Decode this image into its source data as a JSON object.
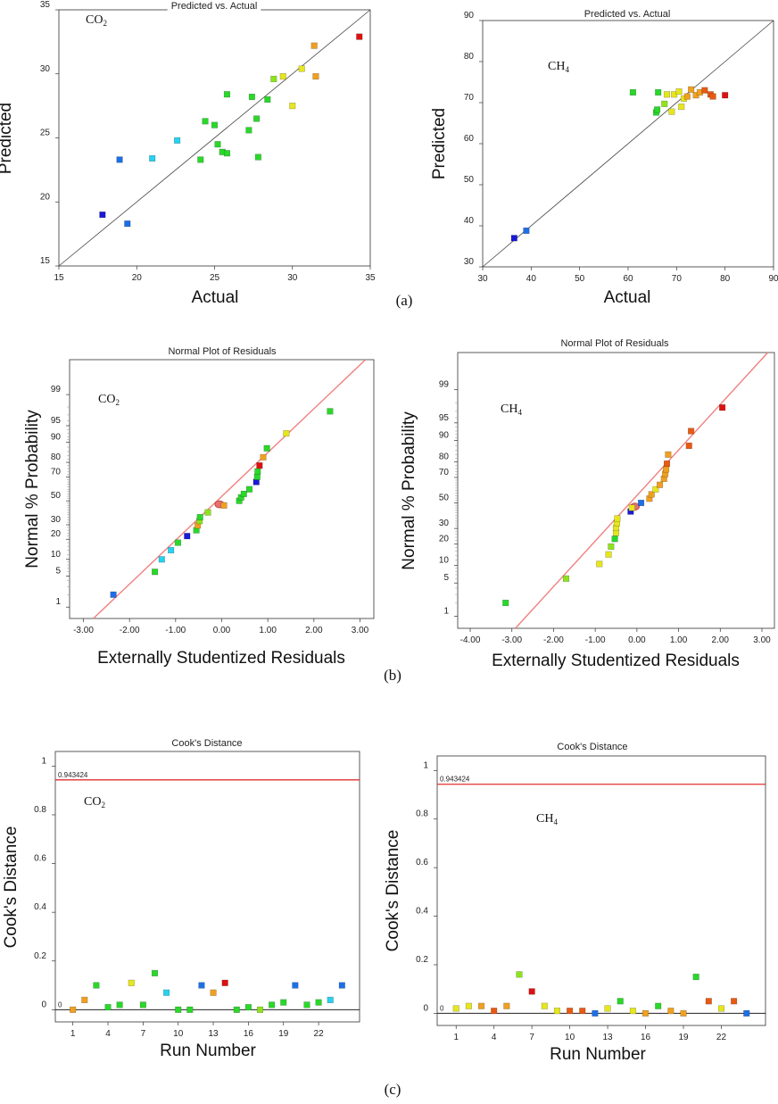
{
  "figure": {
    "panel_labels": [
      "(a)",
      "(b)",
      "(c)"
    ]
  },
  "palette": [
    "#1a1ad6",
    "#1e6fe6",
    "#27d2f0",
    "#2ad82a",
    "#8ee41c",
    "#e6e61e",
    "#f0a020",
    "#e85a14",
    "#de1010"
  ],
  "chart_data": [
    {
      "type": "scatter",
      "id": "pva-co2",
      "title": "Predicted vs. Actual",
      "gas": "CO",
      "gas_sub": "2",
      "xlabel": "Actual",
      "ylabel": "Predicted",
      "xlim": [
        15,
        35
      ],
      "ylim": [
        15,
        35
      ],
      "xticks": [
        15,
        20,
        25,
        30,
        35
      ],
      "yticks": [
        15,
        20,
        25,
        30,
        35
      ],
      "reference_line": [
        [
          15,
          15
        ],
        [
          35,
          35
        ]
      ],
      "points": [
        {
          "x": 17.8,
          "y": 19.0,
          "c": 0
        },
        {
          "x": 18.9,
          "y": 23.3,
          "c": 1
        },
        {
          "x": 19.4,
          "y": 18.3,
          "c": 1
        },
        {
          "x": 21.0,
          "y": 23.4,
          "c": 2
        },
        {
          "x": 22.6,
          "y": 24.8,
          "c": 2
        },
        {
          "x": 24.1,
          "y": 23.3,
          "c": 3
        },
        {
          "x": 24.4,
          "y": 26.3,
          "c": 3
        },
        {
          "x": 25.0,
          "y": 26.0,
          "c": 3
        },
        {
          "x": 25.2,
          "y": 24.5,
          "c": 3
        },
        {
          "x": 25.5,
          "y": 23.9,
          "c": 3
        },
        {
          "x": 25.8,
          "y": 23.8,
          "c": 3
        },
        {
          "x": 25.8,
          "y": 28.4,
          "c": 3
        },
        {
          "x": 27.2,
          "y": 25.6,
          "c": 3
        },
        {
          "x": 27.4,
          "y": 28.2,
          "c": 3
        },
        {
          "x": 27.7,
          "y": 26.5,
          "c": 3
        },
        {
          "x": 27.8,
          "y": 23.5,
          "c": 3
        },
        {
          "x": 28.4,
          "y": 28.0,
          "c": 3
        },
        {
          "x": 28.8,
          "y": 29.6,
          "c": 4
        },
        {
          "x": 29.4,
          "y": 29.8,
          "c": 5
        },
        {
          "x": 30.0,
          "y": 27.5,
          "c": 5
        },
        {
          "x": 30.6,
          "y": 30.4,
          "c": 5
        },
        {
          "x": 31.4,
          "y": 32.2,
          "c": 6
        },
        {
          "x": 31.5,
          "y": 29.8,
          "c": 6
        },
        {
          "x": 34.3,
          "y": 32.9,
          "c": 8
        }
      ]
    },
    {
      "type": "scatter",
      "id": "pva-ch4",
      "title": "Predicted vs. Actual",
      "gas": "CH",
      "gas_sub": "4",
      "xlabel": "Actual",
      "ylabel": "Predicted",
      "xlim": [
        30,
        90
      ],
      "ylim": [
        30,
        90
      ],
      "xticks": [
        30,
        40,
        50,
        60,
        70,
        80,
        90
      ],
      "yticks": [
        30,
        40,
        50,
        60,
        70,
        80,
        90
      ],
      "reference_line": [
        [
          30,
          30
        ],
        [
          90,
          90
        ]
      ],
      "points": [
        {
          "x": 36.5,
          "y": 37.0,
          "c": 0
        },
        {
          "x": 39.0,
          "y": 38.8,
          "c": 1
        },
        {
          "x": 61.0,
          "y": 72.5,
          "c": 3
        },
        {
          "x": 65.8,
          "y": 67.6,
          "c": 3
        },
        {
          "x": 66.0,
          "y": 68.3,
          "c": 3
        },
        {
          "x": 66.2,
          "y": 72.5,
          "c": 3
        },
        {
          "x": 67.5,
          "y": 69.7,
          "c": 4
        },
        {
          "x": 68.0,
          "y": 72.0,
          "c": 5
        },
        {
          "x": 69.0,
          "y": 67.8,
          "c": 5
        },
        {
          "x": 69.5,
          "y": 72.0,
          "c": 5
        },
        {
          "x": 70.5,
          "y": 72.7,
          "c": 5
        },
        {
          "x": 71.0,
          "y": 69.0,
          "c": 5
        },
        {
          "x": 71.5,
          "y": 71.0,
          "c": 5
        },
        {
          "x": 72.2,
          "y": 71.5,
          "c": 6
        },
        {
          "x": 73.0,
          "y": 73.2,
          "c": 6
        },
        {
          "x": 74.0,
          "y": 71.8,
          "c": 6
        },
        {
          "x": 74.8,
          "y": 72.5,
          "c": 6
        },
        {
          "x": 75.8,
          "y": 73.0,
          "c": 7
        },
        {
          "x": 77.0,
          "y": 72.0,
          "c": 7
        },
        {
          "x": 77.5,
          "y": 71.5,
          "c": 7
        },
        {
          "x": 80.0,
          "y": 71.8,
          "c": 8
        }
      ]
    },
    {
      "type": "scatter",
      "id": "npr-co2",
      "title": "Normal Plot of Residuals",
      "gas": "CO",
      "gas_sub": "2",
      "xlabel": "Externally Studentized Residuals",
      "ylabel": "Normal % Probability",
      "xlim": [
        -3.3,
        3.3
      ],
      "xticks": [
        -3,
        -2,
        -1,
        0,
        1,
        2,
        3
      ],
      "xtick_labels": [
        "-3.00",
        "-2.00",
        "-1.00",
        "0.00",
        "1.00",
        "2.00",
        "3.00"
      ],
      "yticks": [
        1,
        5,
        10,
        20,
        30,
        50,
        70,
        80,
        90,
        95,
        99
      ],
      "reference_line": [
        [
          -3.3,
          0.107
        ],
        [
          3.3,
          99.945
        ]
      ],
      "points": [
        {
          "x": -2.35,
          "p": 2.0,
          "c": 1
        },
        {
          "x": -1.45,
          "p": 6.0,
          "c": 3
        },
        {
          "x": -1.3,
          "p": 10.0,
          "c": 2
        },
        {
          "x": -1.1,
          "p": 14.0,
          "c": 2
        },
        {
          "x": -0.95,
          "p": 18.0,
          "c": 3
        },
        {
          "x": -0.75,
          "p": 22.0,
          "c": 0
        },
        {
          "x": -0.55,
          "p": 26.0,
          "c": 3
        },
        {
          "x": -0.52,
          "p": 29.5,
          "c": 6
        },
        {
          "x": -0.48,
          "p": 33.0,
          "c": 4
        },
        {
          "x": -0.47,
          "p": 36.0,
          "c": 3
        },
        {
          "x": -0.3,
          "p": 40.0,
          "c": 4
        },
        {
          "x": 0.05,
          "p": 46.0,
          "c": 6
        },
        {
          "x": 0.38,
          "p": 50.0,
          "c": 3
        },
        {
          "x": 0.42,
          "p": 53.0,
          "c": 3
        },
        {
          "x": 0.48,
          "p": 56.0,
          "c": 3
        },
        {
          "x": 0.6,
          "p": 60.0,
          "c": 3
        },
        {
          "x": 0.75,
          "p": 66.0,
          "c": 0
        },
        {
          "x": 0.77,
          "p": 70.0,
          "c": 3
        },
        {
          "x": 0.78,
          "p": 74.0,
          "c": 3
        },
        {
          "x": 0.82,
          "p": 78.0,
          "c": 8
        },
        {
          "x": 0.9,
          "p": 83.0,
          "c": 6
        },
        {
          "x": 0.98,
          "p": 87.5,
          "c": 3
        },
        {
          "x": 1.4,
          "p": 93.0,
          "c": 5
        },
        {
          "x": 2.35,
          "p": 97.5,
          "c": 3
        }
      ],
      "center_marker": {
        "x": -0.05,
        "p": 47.0
      }
    },
    {
      "type": "scatter",
      "id": "npr-ch4",
      "title": "Normal Plot of Residuals",
      "gas": "CH",
      "gas_sub": "4",
      "xlabel": "Externally Studentized Residuals",
      "ylabel": "Normal % Probability",
      "xlim": [
        -4.3,
        3.3
      ],
      "xticks": [
        -4,
        -3,
        -2,
        -1,
        0,
        1,
        2,
        3
      ],
      "xtick_labels": [
        "-4.00",
        "-3.00",
        "-2.00",
        "-1.00",
        "0.00",
        "1.00",
        "2.00",
        "3.00"
      ],
      "yticks": [
        1,
        5,
        10,
        20,
        30,
        50,
        70,
        80,
        90,
        95,
        99
      ],
      "reference_line": [
        [
          -3.5,
          0.09
        ],
        [
          3.3,
          99.94
        ]
      ],
      "points": [
        {
          "x": -3.15,
          "p": 2.0,
          "c": 3
        },
        {
          "x": -1.7,
          "p": 6.0,
          "c": 4
        },
        {
          "x": -0.9,
          "p": 10.5,
          "c": 5
        },
        {
          "x": -0.68,
          "p": 14.5,
          "c": 5
        },
        {
          "x": -0.62,
          "p": 18.5,
          "c": 4
        },
        {
          "x": -0.53,
          "p": 23.0,
          "c": 3
        },
        {
          "x": -0.5,
          "p": 27.0,
          "c": 5
        },
        {
          "x": -0.5,
          "p": 30.5,
          "c": 5
        },
        {
          "x": -0.48,
          "p": 34.0,
          "c": 5
        },
        {
          "x": -0.47,
          "p": 37.5,
          "c": 5
        },
        {
          "x": -0.15,
          "p": 43.0,
          "c": 0
        },
        {
          "x": -0.12,
          "p": 46.0,
          "c": 5
        },
        {
          "x": 0.1,
          "p": 50.0,
          "c": 1
        },
        {
          "x": 0.3,
          "p": 53.5,
          "c": 6
        },
        {
          "x": 0.35,
          "p": 57.0,
          "c": 6
        },
        {
          "x": 0.45,
          "p": 61.0,
          "c": 5
        },
        {
          "x": 0.55,
          "p": 64.5,
          "c": 6
        },
        {
          "x": 0.65,
          "p": 69.0,
          "c": 6
        },
        {
          "x": 0.68,
          "p": 72.5,
          "c": 6
        },
        {
          "x": 0.7,
          "p": 75.5,
          "c": 6
        },
        {
          "x": 0.72,
          "p": 79.0,
          "c": 7
        },
        {
          "x": 0.75,
          "p": 84.0,
          "c": 6
        },
        {
          "x": 1.25,
          "p": 88.0,
          "c": 7
        },
        {
          "x": 1.3,
          "p": 93.0,
          "c": 7
        },
        {
          "x": 2.05,
          "p": 97.5,
          "c": 8
        }
      ],
      "center_marker": {
        "x": -0.05,
        "p": 47.0
      }
    },
    {
      "type": "scatter",
      "id": "cook-co2",
      "title": "Cook's Distance",
      "gas": "CO",
      "gas_sub": "2",
      "xlabel": "Run Number",
      "ylabel": "Cook's Distance",
      "xlim": [
        -0.5,
        25.5
      ],
      "ylim": [
        -0.05,
        1.06
      ],
      "xticks": [
        1,
        4,
        7,
        10,
        13,
        16,
        19,
        22
      ],
      "yticks": [
        0,
        0.2,
        0.4,
        0.6,
        0.8,
        1
      ],
      "ytick_labels": [
        "0",
        "0.2",
        "0.4",
        "0.6",
        "0.8",
        "1"
      ],
      "threshold": 0.943424,
      "threshold_label": "0.943424",
      "zero_label": "0",
      "points": [
        {
          "x": 1,
          "y": 0.0,
          "c": 6
        },
        {
          "x": 2,
          "y": 0.04,
          "c": 6
        },
        {
          "x": 3,
          "y": 0.1,
          "c": 3
        },
        {
          "x": 4,
          "y": 0.01,
          "c": 3
        },
        {
          "x": 5,
          "y": 0.02,
          "c": 3
        },
        {
          "x": 6,
          "y": 0.11,
          "c": 5
        },
        {
          "x": 7,
          "y": 0.02,
          "c": 3
        },
        {
          "x": 8,
          "y": 0.15,
          "c": 3
        },
        {
          "x": 9,
          "y": 0.07,
          "c": 2
        },
        {
          "x": 10,
          "y": 0.0,
          "c": 3
        },
        {
          "x": 11,
          "y": 0.0,
          "c": 3
        },
        {
          "x": 12,
          "y": 0.1,
          "c": 1
        },
        {
          "x": 13,
          "y": 0.07,
          "c": 6
        },
        {
          "x": 14,
          "y": 0.11,
          "c": 8
        },
        {
          "x": 15,
          "y": 0.0,
          "c": 3
        },
        {
          "x": 16,
          "y": 0.01,
          "c": 3
        },
        {
          "x": 17,
          "y": 0.0,
          "c": 4
        },
        {
          "x": 18,
          "y": 0.02,
          "c": 3
        },
        {
          "x": 19,
          "y": 0.03,
          "c": 3
        },
        {
          "x": 20,
          "y": 0.1,
          "c": 1
        },
        {
          "x": 21,
          "y": 0.02,
          "c": 3
        },
        {
          "x": 22,
          "y": 0.03,
          "c": 3
        },
        {
          "x": 23,
          "y": 0.04,
          "c": 2
        },
        {
          "x": 24,
          "y": 0.1,
          "c": 1
        }
      ]
    },
    {
      "type": "scatter",
      "id": "cook-ch4",
      "title": "Cook's Distance",
      "gas": "CH",
      "gas_sub": "4",
      "xlabel": "Run Number",
      "ylabel": "Cook's Distance",
      "xlim": [
        -0.5,
        25.5
      ],
      "ylim": [
        -0.05,
        1.06
      ],
      "xticks": [
        1,
        4,
        7,
        10,
        13,
        16,
        19,
        22
      ],
      "yticks": [
        0,
        0.2,
        0.4,
        0.6,
        0.8,
        1
      ],
      "ytick_labels": [
        "0",
        "0.2",
        "0.4",
        "0.6",
        "0.8",
        "1"
      ],
      "threshold": 0.943424,
      "threshold_label": "0.943424",
      "zero_label": "0",
      "points": [
        {
          "x": 1,
          "y": 0.02,
          "c": 5
        },
        {
          "x": 2,
          "y": 0.03,
          "c": 5
        },
        {
          "x": 3,
          "y": 0.03,
          "c": 6
        },
        {
          "x": 4,
          "y": 0.01,
          "c": 7
        },
        {
          "x": 5,
          "y": 0.03,
          "c": 6
        },
        {
          "x": 6,
          "y": 0.16,
          "c": 4
        },
        {
          "x": 7,
          "y": 0.09,
          "c": 8
        },
        {
          "x": 8,
          "y": 0.03,
          "c": 5
        },
        {
          "x": 9,
          "y": 0.01,
          "c": 5
        },
        {
          "x": 10,
          "y": 0.01,
          "c": 7
        },
        {
          "x": 11,
          "y": 0.01,
          "c": 7
        },
        {
          "x": 12,
          "y": 0.0,
          "c": 1
        },
        {
          "x": 13,
          "y": 0.02,
          "c": 5
        },
        {
          "x": 14,
          "y": 0.05,
          "c": 3
        },
        {
          "x": 15,
          "y": 0.01,
          "c": 5
        },
        {
          "x": 16,
          "y": 0.0,
          "c": 6
        },
        {
          "x": 17,
          "y": 0.03,
          "c": 3
        },
        {
          "x": 18,
          "y": 0.01,
          "c": 6
        },
        {
          "x": 19,
          "y": 0.0,
          "c": 6
        },
        {
          "x": 20,
          "y": 0.15,
          "c": 3
        },
        {
          "x": 21,
          "y": 0.05,
          "c": 7
        },
        {
          "x": 22,
          "y": 0.02,
          "c": 5
        },
        {
          "x": 23,
          "y": 0.05,
          "c": 7
        },
        {
          "x": 24,
          "y": 0.0,
          "c": 1
        }
      ]
    }
  ]
}
